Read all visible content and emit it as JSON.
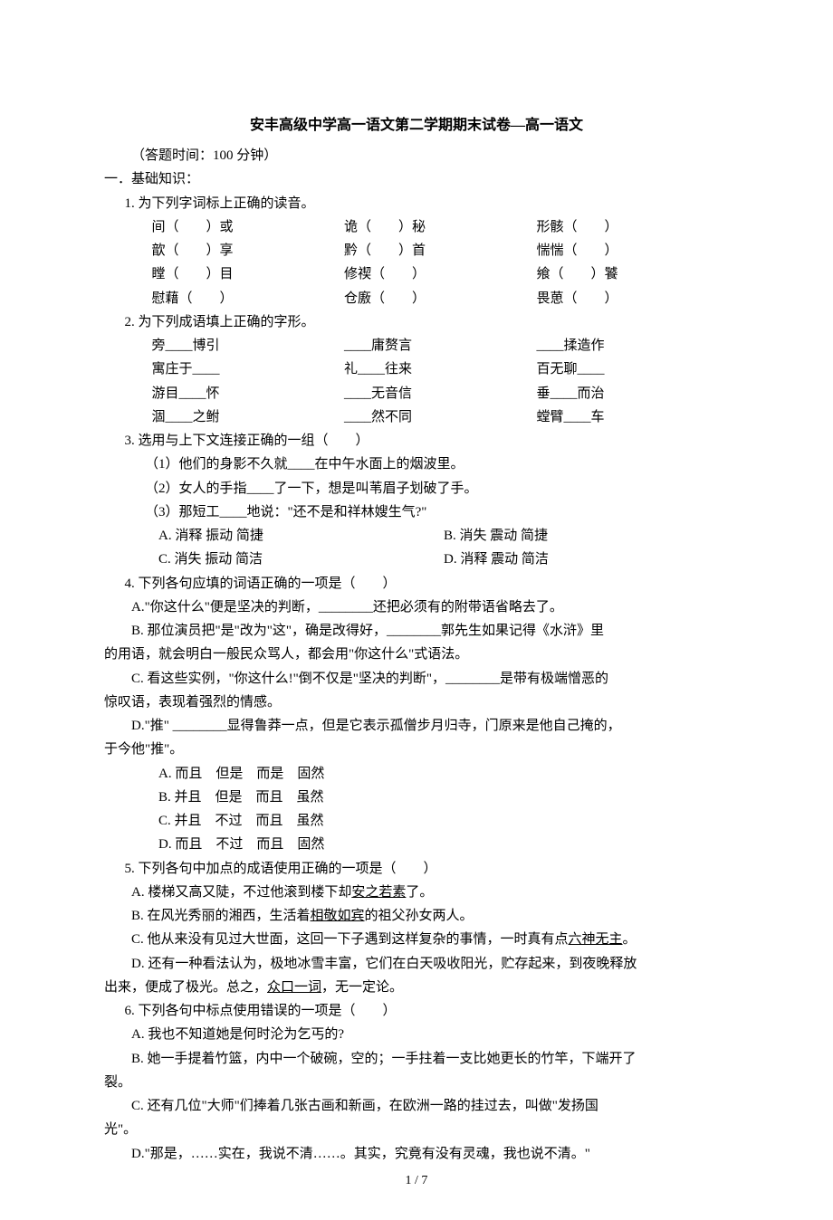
{
  "title": "安丰高级中学高一语文第二学期期末试卷—高一语文",
  "time_note": "（答题时间：100 分钟）",
  "section1": "一．基础知识：",
  "q1": {
    "stem": "1. 为下列字词标上正确的读音。",
    "rows": [
      [
        "间（　　）或",
        "诡（　　）秘",
        "形骸（　　）"
      ],
      [
        "歆（　　）享",
        "黔（　　）首",
        "惴惴（　　）"
      ],
      [
        "瞠（　　）目",
        "修禊（　　）",
        "飨（　　）饕"
      ],
      [
        "慰藉（　　）",
        "仓廒（　　）",
        "畏葸（　　）"
      ]
    ]
  },
  "q2": {
    "stem": "2. 为下列成语填上正确的字形。",
    "rows": [
      [
        "旁____博引",
        "____庸赘言",
        "____揉造作"
      ],
      [
        "寓庄于____",
        "礼____往来",
        "百无聊____"
      ],
      [
        "游目____怀",
        "____无音信",
        "垂____而治"
      ],
      [
        "涸____之鲋",
        "____然不同",
        "螳臂____车"
      ]
    ]
  },
  "q3": {
    "stem": "3. 选用与上下文连接正确的一组（　　）",
    "subs": [
      "（1）他们的身影不久就____在中午水面上的烟波里。",
      "（2）女人的手指____了一下，想是叫苇眉子划破了手。",
      "（3）那短工____地说：\"还不是和祥林嫂生气?\""
    ],
    "opts": [
      [
        "A. 消释  振动  简捷",
        "B. 消失  震动  简捷"
      ],
      [
        "C. 消失  振动  简洁",
        "D. 消释  震动  简洁"
      ]
    ]
  },
  "q4": {
    "stem": "4. 下列各句应填的词语正确的一项是（　　）",
    "a": "A.\"你这什么\"便是坚决的判断，________还把必须有的附带语省略去了。",
    "b1": "B. 那位演员把\"是\"改为\"这\"，确是改得好，________郭先生如果记得《水浒》里",
    "b2": "的用语，就会明白一般民众骂人，都会用\"你这什么\"式语法。",
    "c1": "C. 看这些实例，\"你这什么!\"倒不仅是\"坚决的判断\"，________是带有极端憎恶的",
    "c2": "惊叹语，表现着强烈的情感。",
    "d1": "D.\"推\"  ________显得鲁莽一点，但是它表示孤僧步月归寺，门原来是他自己掩的，",
    "d2": "于今他\"推\"。",
    "opts": [
      "A. 而且　但是　而是　固然",
      "B. 并且　但是　而且　虽然",
      "C. 并且　不过　而且　虽然",
      "D. 而且　不过　而且　固然"
    ]
  },
  "q5": {
    "stem": "5. 下列各句中加点的成语使用正确的一项是（　　）",
    "a_pre": "A. 楼梯又高又陡，不过他滚到楼下却",
    "a_ul": "安之若素",
    "a_post": "了。",
    "b_pre": "B. 在风光秀丽的湘西，生活着",
    "b_ul": "相敬如宾",
    "b_post": "的祖父孙女两人。",
    "c_pre": "C. 他从来没有见过大世面，这回一下子遇到这样复杂的事情，一时真有点",
    "c_ul": "六神无主",
    "c_post": "。",
    "d1": "D. 还有一种看法认为，极地冰雪丰富，它们在白天吸收阳光，贮存起来，到夜晚释放",
    "d2_pre": "出来，便成了极光。总之，",
    "d2_ul": "众口一词",
    "d2_post": "，无一定论。"
  },
  "q6": {
    "stem": "6. 下列各句中标点使用错误的一项是（　　）",
    "a": "A. 我也不知道她是何时沦为乞丐的?",
    "b1": "B. 她一手提着竹篮，内中一个破碗，空的；一手拄着一支比她更长的竹竿，下端开了",
    "b2": "裂。",
    "c1": "C. 还有几位\"大师\"们捧着几张古画和新画，在欧洲一路的挂过去，叫做\"发扬国",
    "c2": "光\"。",
    "d": "D.\"那是，……实在，我说不清……。其实，究竟有没有灵魂，我也说不清。\""
  },
  "pagenum": "1 / 7"
}
